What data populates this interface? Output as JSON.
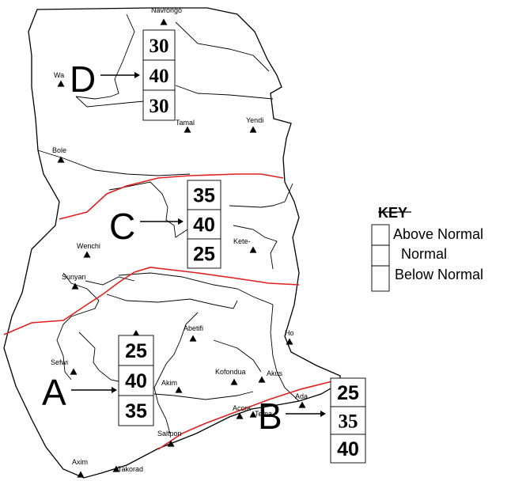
{
  "map": {
    "towns": [
      {
        "name": "Navrongo"
      },
      {
        "name": "Wa"
      },
      {
        "name": "Tamal"
      },
      {
        "name": "Yendi"
      },
      {
        "name": "Bole"
      },
      {
        "name": "Wenchi"
      },
      {
        "name": "Kete-"
      },
      {
        "name": "Sunyan"
      },
      {
        "name": "Abetifi"
      },
      {
        "name": "Ho"
      },
      {
        "name": "Sefwi"
      },
      {
        "name": "Kofondua"
      },
      {
        "name": "Akus"
      },
      {
        "name": "Akim"
      },
      {
        "name": "Ada"
      },
      {
        "name": "Accra"
      },
      {
        "name": "Tema"
      },
      {
        "name": "Saltpon"
      },
      {
        "name": "Axim"
      },
      {
        "name": "Takorad"
      }
    ],
    "zones": [
      {
        "letter": "D",
        "values": [
          "30",
          "40",
          "30"
        ]
      },
      {
        "letter": "C",
        "values": [
          "35",
          "40",
          "25"
        ]
      },
      {
        "letter": "A",
        "values": [
          "25",
          "40",
          "35"
        ]
      },
      {
        "letter": "B",
        "values": [
          "25",
          "35",
          "40"
        ]
      }
    ],
    "key": {
      "title": "KEY",
      "items": [
        "Above Normal",
        "Normal",
        "Below Normal"
      ]
    },
    "colors": {
      "outline": "#000000",
      "zone_boundary": "#e0201e",
      "background": "#ffffff"
    }
  }
}
